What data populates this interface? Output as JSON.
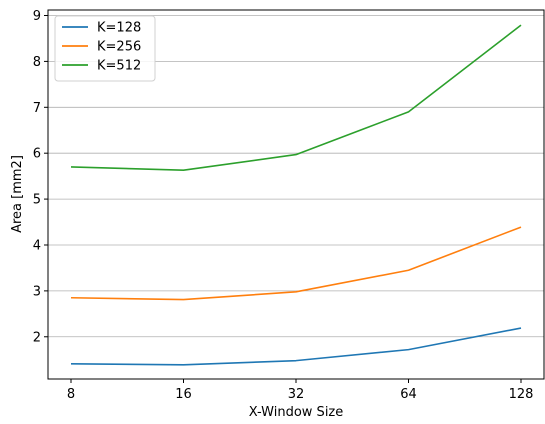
{
  "chart_data": {
    "type": "line",
    "xlabel": "X-Window Size",
    "ylabel": "Area [mm2]",
    "x": [
      "8",
      "16",
      "32",
      "64",
      "128"
    ],
    "series": [
      {
        "name": "K=128",
        "color": "#1f77b4",
        "values": [
          1.41,
          1.39,
          1.48,
          1.72,
          2.19
        ]
      },
      {
        "name": "K=256",
        "color": "#ff7f0e",
        "values": [
          2.85,
          2.81,
          2.98,
          3.45,
          4.39
        ]
      },
      {
        "name": "K=512",
        "color": "#2ca02c",
        "values": [
          5.7,
          5.63,
          5.97,
          6.9,
          8.79
        ]
      }
    ],
    "yticks": [
      2,
      3,
      4,
      5,
      6,
      7,
      8,
      9
    ],
    "ylim": [
      1.08,
      9.12
    ],
    "grid": {
      "y": true,
      "x": false
    },
    "legend_position": "top-left"
  }
}
